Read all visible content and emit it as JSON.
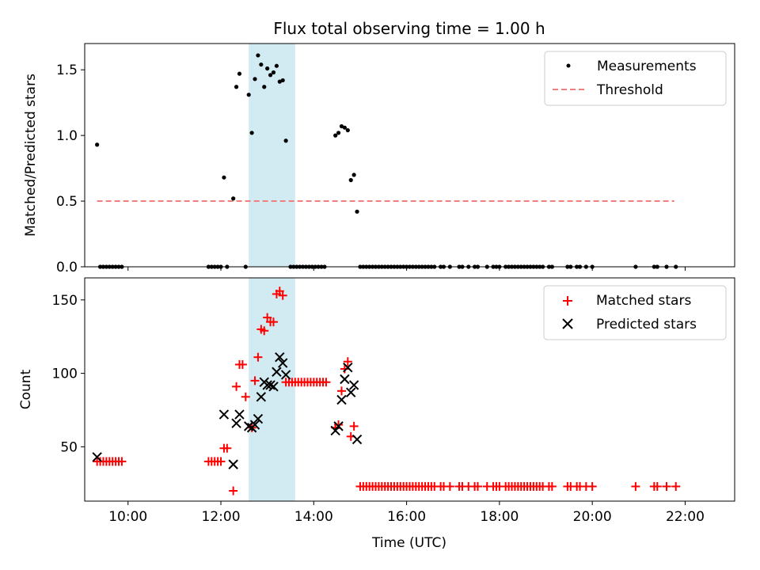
{
  "figure": {
    "title": "Flux total observing time = 1.00 h",
    "xlabel": "Time (UTC)",
    "xticks": [
      "10:00",
      "12:00",
      "14:00",
      "16:00",
      "18:00",
      "20:00",
      "22:00"
    ]
  },
  "colors": {
    "measurement": "#000000",
    "threshold": "#f08080",
    "matched": "#ff0000",
    "predicted": "#000000",
    "span": "#add8e6"
  },
  "chart_data": [
    {
      "type": "scatter",
      "panel": "top",
      "ylabel": "Matched/Predicted stars",
      "xlim": [
        "09:04",
        "23:04"
      ],
      "ylim": [
        0,
        1.7
      ],
      "yticks": [
        0.0,
        0.5,
        1.0,
        1.5
      ],
      "legend": "top-right",
      "highlight_span": [
        "12:36",
        "13:36"
      ],
      "threshold": {
        "name": "Threshold",
        "value": 0.5,
        "x_range": [
          "09:20",
          "21:46"
        ]
      },
      "series": [
        {
          "name": "Measurements",
          "marker": "dot",
          "points": [
            [
              "09:20",
              0.93
            ],
            [
              "09:24",
              0
            ],
            [
              "09:28",
              0
            ],
            [
              "09:32",
              0
            ],
            [
              "09:36",
              0
            ],
            [
              "09:40",
              0
            ],
            [
              "09:44",
              0
            ],
            [
              "09:48",
              0
            ],
            [
              "09:52",
              0
            ],
            [
              "11:44",
              0
            ],
            [
              "11:48",
              0
            ],
            [
              "11:52",
              0
            ],
            [
              "11:56",
              0
            ],
            [
              "12:00",
              0
            ],
            [
              "12:04",
              0.68
            ],
            [
              "12:08",
              0
            ],
            [
              "12:16",
              0.52
            ],
            [
              "12:20",
              1.37
            ],
            [
              "12:24",
              1.47
            ],
            [
              "12:32",
              0
            ],
            [
              "12:36",
              1.31
            ],
            [
              "12:40",
              1.02
            ],
            [
              "12:44",
              1.43
            ],
            [
              "12:48",
              1.61
            ],
            [
              "12:52",
              1.54
            ],
            [
              "12:56",
              1.37
            ],
            [
              "13:00",
              1.51
            ],
            [
              "13:04",
              1.46
            ],
            [
              "13:08",
              1.48
            ],
            [
              "13:12",
              1.53
            ],
            [
              "13:16",
              1.41
            ],
            [
              "13:20",
              1.42
            ],
            [
              "13:24",
              0.96
            ],
            [
              "13:30",
              0
            ],
            [
              "13:34",
              0
            ],
            [
              "13:38",
              0
            ],
            [
              "13:42",
              0
            ],
            [
              "13:46",
              0
            ],
            [
              "13:50",
              0
            ],
            [
              "13:54",
              0
            ],
            [
              "13:58",
              0
            ],
            [
              "14:02",
              0
            ],
            [
              "14:06",
              0
            ],
            [
              "14:10",
              0
            ],
            [
              "14:14",
              0
            ],
            [
              "14:28",
              1.0
            ],
            [
              "14:32",
              1.02
            ],
            [
              "14:36",
              1.07
            ],
            [
              "14:40",
              1.06
            ],
            [
              "14:44",
              1.04
            ],
            [
              "14:48",
              0.66
            ],
            [
              "14:52",
              0.7
            ],
            [
              "14:56",
              0.42
            ],
            [
              "15:00",
              0
            ],
            [
              "15:04",
              0
            ],
            [
              "15:08",
              0
            ],
            [
              "15:12",
              0
            ],
            [
              "15:16",
              0
            ],
            [
              "15:20",
              0
            ],
            [
              "15:24",
              0
            ],
            [
              "15:28",
              0
            ],
            [
              "15:32",
              0
            ],
            [
              "15:36",
              0
            ],
            [
              "15:40",
              0
            ],
            [
              "15:44",
              0
            ],
            [
              "15:48",
              0
            ],
            [
              "15:52",
              0
            ],
            [
              "15:56",
              0
            ],
            [
              "16:00",
              0
            ],
            [
              "16:04",
              0
            ],
            [
              "16:08",
              0
            ],
            [
              "16:12",
              0
            ],
            [
              "16:16",
              0
            ],
            [
              "16:20",
              0
            ],
            [
              "16:24",
              0
            ],
            [
              "16:28",
              0
            ],
            [
              "16:32",
              0
            ],
            [
              "16:36",
              0
            ],
            [
              "16:44",
              0
            ],
            [
              "16:48",
              0
            ],
            [
              "16:56",
              0
            ],
            [
              "17:08",
              0
            ],
            [
              "17:12",
              0
            ],
            [
              "17:20",
              0
            ],
            [
              "17:28",
              0
            ],
            [
              "17:32",
              0
            ],
            [
              "17:44",
              0
            ],
            [
              "17:52",
              0
            ],
            [
              "17:56",
              0
            ],
            [
              "18:00",
              0
            ],
            [
              "18:08",
              0
            ],
            [
              "18:12",
              0
            ],
            [
              "18:16",
              0
            ],
            [
              "18:20",
              0
            ],
            [
              "18:24",
              0
            ],
            [
              "18:28",
              0
            ],
            [
              "18:32",
              0
            ],
            [
              "18:36",
              0
            ],
            [
              "18:40",
              0
            ],
            [
              "18:44",
              0
            ],
            [
              "18:48",
              0
            ],
            [
              "18:52",
              0
            ],
            [
              "18:56",
              0
            ],
            [
              "19:04",
              0
            ],
            [
              "19:08",
              0
            ],
            [
              "19:28",
              0
            ],
            [
              "19:32",
              0
            ],
            [
              "19:40",
              0
            ],
            [
              "19:44",
              0
            ],
            [
              "19:52",
              0
            ],
            [
              "20:00",
              0
            ],
            [
              "20:56",
              0
            ],
            [
              "21:20",
              0
            ],
            [
              "21:24",
              0
            ],
            [
              "21:36",
              0
            ],
            [
              "21:48",
              0
            ]
          ]
        }
      ]
    },
    {
      "type": "scatter",
      "panel": "bottom",
      "ylabel": "Count",
      "xlabel": "Time (UTC)",
      "xlim": [
        "09:04",
        "23:04"
      ],
      "ylim": [
        13,
        165
      ],
      "yticks": [
        50,
        100,
        150
      ],
      "legend": "top-right",
      "highlight_span": [
        "12:36",
        "13:36"
      ],
      "series": [
        {
          "name": "Matched stars",
          "marker": "plus",
          "points": [
            [
              "09:20",
              40
            ],
            [
              "09:24",
              40
            ],
            [
              "09:28",
              40
            ],
            [
              "09:32",
              40
            ],
            [
              "09:36",
              40
            ],
            [
              "09:40",
              40
            ],
            [
              "09:44",
              40
            ],
            [
              "09:48",
              40
            ],
            [
              "09:52",
              40
            ],
            [
              "11:44",
              40
            ],
            [
              "11:48",
              40
            ],
            [
              "11:52",
              40
            ],
            [
              "11:56",
              40
            ],
            [
              "12:00",
              40
            ],
            [
              "12:04",
              49
            ],
            [
              "12:08",
              49
            ],
            [
              "12:16",
              20
            ],
            [
              "12:20",
              91
            ],
            [
              "12:24",
              106
            ],
            [
              "12:28",
              106
            ],
            [
              "12:32",
              84
            ],
            [
              "12:40",
              63
            ],
            [
              "12:44",
              95
            ],
            [
              "12:48",
              111
            ],
            [
              "12:52",
              130
            ],
            [
              "12:56",
              129
            ],
            [
              "13:00",
              138
            ],
            [
              "13:04",
              135
            ],
            [
              "13:08",
              135
            ],
            [
              "13:12",
              154
            ],
            [
              "13:16",
              156
            ],
            [
              "13:20",
              153
            ],
            [
              "13:24",
              94
            ],
            [
              "13:28",
              94
            ],
            [
              "13:32",
              94
            ],
            [
              "13:36",
              94
            ],
            [
              "13:40",
              94
            ],
            [
              "13:44",
              94
            ],
            [
              "13:48",
              94
            ],
            [
              "13:52",
              94
            ],
            [
              "13:56",
              94
            ],
            [
              "14:00",
              94
            ],
            [
              "14:04",
              94
            ],
            [
              "14:08",
              94
            ],
            [
              "14:12",
              94
            ],
            [
              "14:16",
              94
            ],
            [
              "14:28",
              63
            ],
            [
              "14:32",
              65
            ],
            [
              "14:36",
              88
            ],
            [
              "14:40",
              103
            ],
            [
              "14:44",
              108
            ],
            [
              "14:48",
              57
            ],
            [
              "14:52",
              64
            ],
            [
              "15:00",
              23
            ],
            [
              "15:04",
              23
            ],
            [
              "15:08",
              23
            ],
            [
              "15:12",
              23
            ],
            [
              "15:16",
              23
            ],
            [
              "15:20",
              23
            ],
            [
              "15:24",
              23
            ],
            [
              "15:28",
              23
            ],
            [
              "15:32",
              23
            ],
            [
              "15:36",
              23
            ],
            [
              "15:40",
              23
            ],
            [
              "15:44",
              23
            ],
            [
              "15:48",
              23
            ],
            [
              "15:52",
              23
            ],
            [
              "15:56",
              23
            ],
            [
              "16:00",
              23
            ],
            [
              "16:04",
              23
            ],
            [
              "16:08",
              23
            ],
            [
              "16:12",
              23
            ],
            [
              "16:16",
              23
            ],
            [
              "16:20",
              23
            ],
            [
              "16:24",
              23
            ],
            [
              "16:28",
              23
            ],
            [
              "16:32",
              23
            ],
            [
              "16:36",
              23
            ],
            [
              "16:44",
              23
            ],
            [
              "16:48",
              23
            ],
            [
              "16:56",
              23
            ],
            [
              "17:08",
              23
            ],
            [
              "17:12",
              23
            ],
            [
              "17:20",
              23
            ],
            [
              "17:28",
              23
            ],
            [
              "17:32",
              23
            ],
            [
              "17:44",
              23
            ],
            [
              "17:52",
              23
            ],
            [
              "17:56",
              23
            ],
            [
              "18:00",
              23
            ],
            [
              "18:08",
              23
            ],
            [
              "18:12",
              23
            ],
            [
              "18:16",
              23
            ],
            [
              "18:20",
              23
            ],
            [
              "18:24",
              23
            ],
            [
              "18:28",
              23
            ],
            [
              "18:32",
              23
            ],
            [
              "18:36",
              23
            ],
            [
              "18:40",
              23
            ],
            [
              "18:44",
              23
            ],
            [
              "18:48",
              23
            ],
            [
              "18:52",
              23
            ],
            [
              "18:56",
              23
            ],
            [
              "19:04",
              23
            ],
            [
              "19:08",
              23
            ],
            [
              "19:28",
              23
            ],
            [
              "19:32",
              23
            ],
            [
              "19:40",
              23
            ],
            [
              "19:44",
              23
            ],
            [
              "19:52",
              23
            ],
            [
              "20:00",
              23
            ],
            [
              "20:56",
              23
            ],
            [
              "21:20",
              23
            ],
            [
              "21:24",
              23
            ],
            [
              "21:36",
              23
            ],
            [
              "21:48",
              23
            ]
          ]
        },
        {
          "name": "Predicted stars",
          "marker": "x",
          "points": [
            [
              "09:20",
              43
            ],
            [
              "12:04",
              72
            ],
            [
              "12:16",
              38
            ],
            [
              "12:20",
              66
            ],
            [
              "12:24",
              72
            ],
            [
              "12:36",
              64
            ],
            [
              "12:40",
              63
            ],
            [
              "12:44",
              65
            ],
            [
              "12:48",
              69
            ],
            [
              "12:52",
              84
            ],
            [
              "12:56",
              94
            ],
            [
              "13:00",
              92
            ],
            [
              "13:04",
              92
            ],
            [
              "13:08",
              91
            ],
            [
              "13:12",
              101
            ],
            [
              "13:16",
              111
            ],
            [
              "13:20",
              107
            ],
            [
              "13:24",
              99
            ],
            [
              "14:28",
              61
            ],
            [
              "14:32",
              64
            ],
            [
              "14:36",
              82
            ],
            [
              "14:40",
              96
            ],
            [
              "14:44",
              104
            ],
            [
              "14:48",
              87
            ],
            [
              "14:52",
              92
            ],
            [
              "14:56",
              55
            ]
          ]
        }
      ]
    }
  ]
}
